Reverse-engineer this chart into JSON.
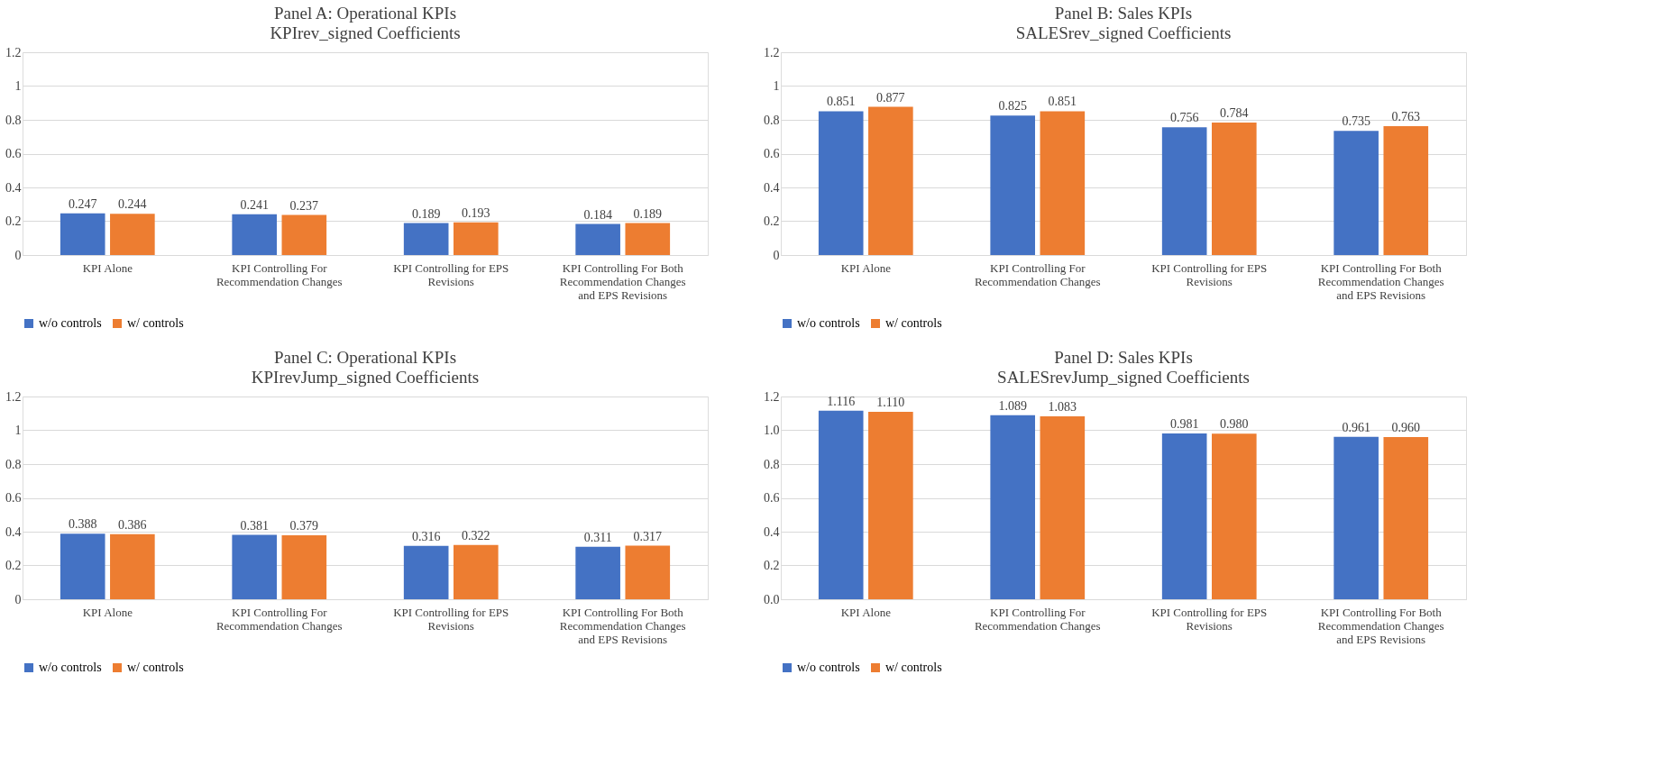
{
  "chart_data": [
    {
      "type": "bar",
      "title": "Panel A:  Operational KPIs",
      "subtitle": "KPIrev_signed Coefficients",
      "categories": [
        "KPI Alone",
        "KPI Controlling For Recommendation Changes",
        "KPI Controlling for EPS Revisions",
        "KPI Controlling For Both Recommendation Changes and EPS Revisions"
      ],
      "series": [
        {
          "name": "w/o controls",
          "color": "#4472c4",
          "values": [
            0.247,
            0.241,
            0.189,
            0.184
          ]
        },
        {
          "name": "w/ controls",
          "color": "#ed7d31",
          "values": [
            0.244,
            0.237,
            0.193,
            0.189
          ]
        }
      ],
      "ylim": [
        0,
        1.2
      ],
      "yticks": [
        0,
        0.2,
        0.4,
        0.6,
        0.8,
        1,
        1.2
      ],
      "grid": "y",
      "legend": "bottom",
      "data_labels": true
    },
    {
      "type": "bar",
      "title": "Panel B:  Sales KPIs",
      "subtitle": "SALESrev_signed Coefficients",
      "categories": [
        "KPI Alone",
        "KPI Controlling For Recommendation Changes",
        "KPI Controlling for EPS Revisions",
        "KPI Controlling For Both Recommendation Changes and EPS Revisions"
      ],
      "series": [
        {
          "name": "w/o controls",
          "color": "#4472c4",
          "values": [
            0.851,
            0.825,
            0.756,
            0.735
          ]
        },
        {
          "name": "w/ controls",
          "color": "#ed7d31",
          "values": [
            0.877,
            0.851,
            0.784,
            0.763
          ]
        }
      ],
      "ylim": [
        0,
        1.2
      ],
      "yticks": [
        0,
        0.2,
        0.4,
        0.6,
        0.8,
        1,
        1.2
      ],
      "grid": "y",
      "legend": "bottom",
      "data_labels": true
    },
    {
      "type": "bar",
      "title": "Panel C:  Operational KPIs",
      "subtitle": "KPIrevJump_signed Coefficients",
      "categories": [
        "KPI Alone",
        "KPI Controlling For Recommendation Changes",
        "KPI Controlling for EPS Revisions",
        "KPI Controlling For Both Recommendation Changes and EPS Revisions"
      ],
      "series": [
        {
          "name": "w/o controls",
          "color": "#4472c4",
          "values": [
            0.388,
            0.381,
            0.316,
            0.311
          ]
        },
        {
          "name": "w/ controls",
          "color": "#ed7d31",
          "values": [
            0.386,
            0.379,
            0.322,
            0.317
          ]
        }
      ],
      "ylim": [
        0,
        1.2
      ],
      "yticks": [
        0,
        0.2,
        0.4,
        0.6,
        0.8,
        1,
        1.2
      ],
      "grid": "y",
      "legend": "bottom",
      "data_labels": true
    },
    {
      "type": "bar",
      "title": "Panel D:  Sales KPIs",
      "subtitle": "SALESrevJump_signed Coefficients",
      "categories": [
        "KPI Alone",
        "KPI Controlling For Recommendation Changes",
        "KPI Controlling for EPS Revisions",
        "KPI Controlling For Both Recommendation Changes and EPS Revisions"
      ],
      "series": [
        {
          "name": "w/o controls",
          "color": "#4472c4",
          "values": [
            1.116,
            1.089,
            0.981,
            0.961
          ]
        },
        {
          "name": "w/ controls",
          "color": "#ed7d31",
          "values": [
            1.11,
            1.083,
            0.98,
            0.96
          ],
          "value_labels": [
            "1.110",
            "1.083",
            "0.980",
            "0.960"
          ]
        }
      ],
      "ylim": [
        0,
        1.2
      ],
      "yticks": [
        {
          "value": 0,
          "label": "0.0"
        },
        {
          "value": 0.2,
          "label": "0.2"
        },
        {
          "value": 0.4,
          "label": "0.4"
        },
        {
          "value": 0.6,
          "label": "0.6"
        },
        {
          "value": 0.8,
          "label": "0.8"
        },
        {
          "value": 1,
          "label": "1.0"
        },
        {
          "value": 1.2,
          "label": "1.2"
        }
      ],
      "grid": "y",
      "legend": "bottom",
      "data_labels": true
    }
  ]
}
